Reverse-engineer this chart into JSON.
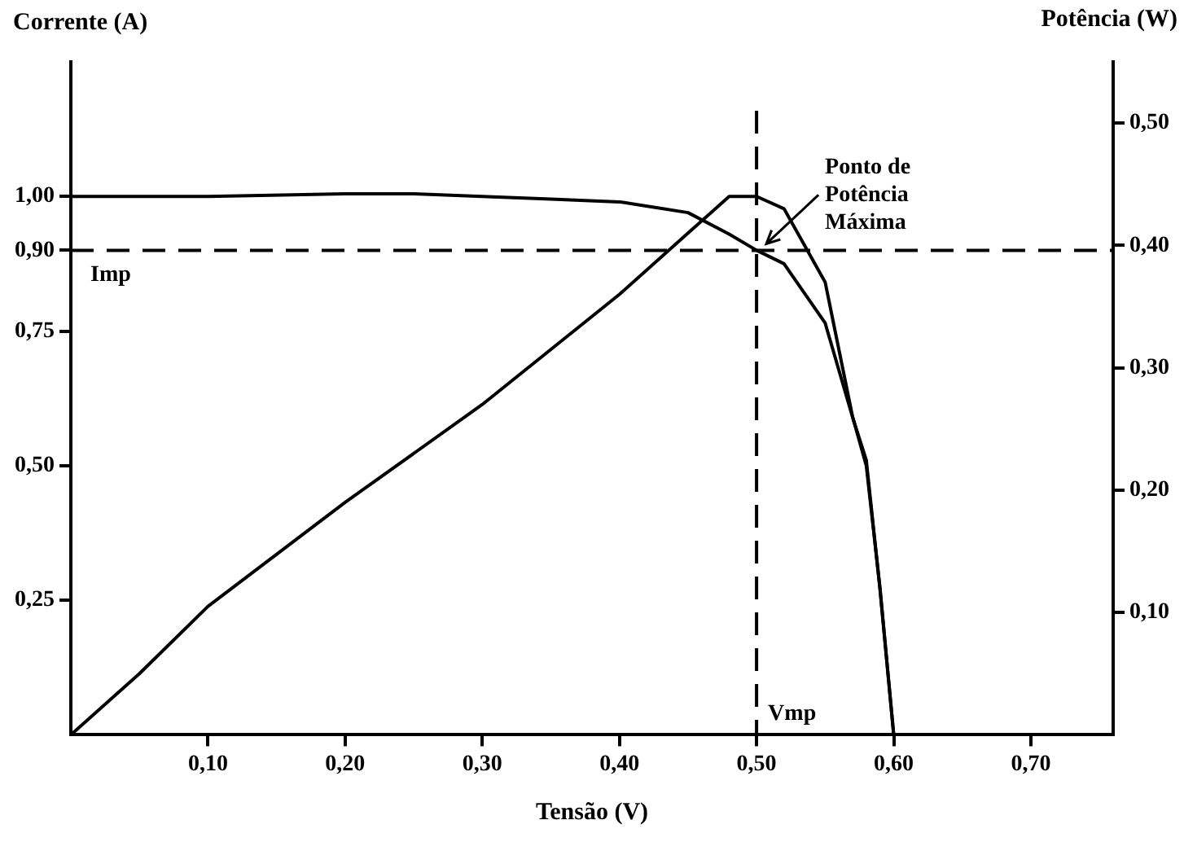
{
  "chart_data": {
    "type": "line",
    "xlabel": "Tensão (V)",
    "ylabel": "Corrente (A)",
    "y2label": "Potência (W)",
    "xlim": [
      0,
      0.76
    ],
    "xticks": [
      {
        "value": 0.1,
        "label": "0,10"
      },
      {
        "value": 0.2,
        "label": "0,20"
      },
      {
        "value": 0.3,
        "label": "0,30"
      },
      {
        "value": 0.4,
        "label": "0,40"
      },
      {
        "value": 0.5,
        "label": "0,50"
      },
      {
        "value": 0.6,
        "label": "0,60"
      },
      {
        "value": 0.7,
        "label": "0,70"
      }
    ],
    "ylim": [
      0,
      1.25
    ],
    "yticks": [
      {
        "value": 0.25,
        "label": "0,25"
      },
      {
        "value": 0.5,
        "label": "0,50"
      },
      {
        "value": 0.75,
        "label": "0,75"
      },
      {
        "value": 0.9,
        "label": "0,90"
      },
      {
        "value": 1.0,
        "label": "1,00"
      }
    ],
    "y2lim": [
      0,
      0.55
    ],
    "y2ticks": [
      {
        "value": 0.1,
        "label": "0,10"
      },
      {
        "value": 0.2,
        "label": "0,20"
      },
      {
        "value": 0.3,
        "label": "0,30"
      },
      {
        "value": 0.4,
        "label": "0,40"
      },
      {
        "value": 0.5,
        "label": "0,50"
      }
    ],
    "series": [
      {
        "color": "#000000",
        "x": [
          0,
          0.1,
          0.2,
          0.25,
          0.3,
          0.35,
          0.4,
          0.45,
          0.48,
          0.5,
          0.52,
          0.55,
          0.57,
          0.58,
          0.59,
          0.6
        ],
        "values": [
          1.0,
          1.0,
          1.005,
          1.005,
          1.0,
          0.995,
          0.99,
          0.97,
          0.93,
          0.9,
          0.875,
          0.765,
          0.59,
          0.51,
          0.27,
          0
        ]
      },
      {
        "color": "#000000",
        "axis": "y2",
        "x": [
          0,
          0.05,
          0.1,
          0.2,
          0.3,
          0.4,
          0.45,
          0.48,
          0.5,
          0.52,
          0.55,
          0.57,
          0.58,
          0.59,
          0.6
        ],
        "values": [
          0,
          0.05,
          0.105,
          0.19,
          0.27,
          0.36,
          0.41,
          0.44,
          0.44,
          0.43,
          0.37,
          0.26,
          0.22,
          0.12,
          0
        ]
      }
    ],
    "ref_lines": [
      {
        "axis": "x",
        "value": 0.5,
        "label": "Vmp",
        "line_style": "dashed"
      },
      {
        "axis": "y",
        "value": 0.9,
        "label": "Imp",
        "line_style": "dashed"
      }
    ],
    "annotations": [
      {
        "text": "Ponto de Potência Máxima",
        "x": 0.5,
        "y": 0.9
      }
    ],
    "legend": false,
    "grid": false,
    "marker": "none",
    "line_style": "solid"
  }
}
